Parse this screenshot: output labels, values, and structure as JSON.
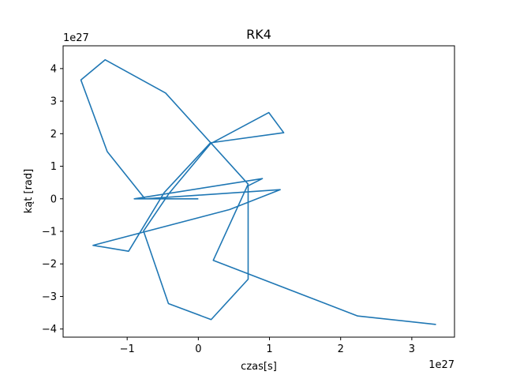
{
  "chart_data": {
    "type": "line",
    "title": "RK4",
    "xlabel": "czas[s]",
    "ylabel": "kąt [rad]",
    "x_offset_label": "1e27",
    "y_offset_label": "1e27",
    "xlim": [
      -1.9,
      3.6
    ],
    "ylim": [
      -4.25,
      4.7
    ],
    "xticks": [
      -1,
      0,
      1,
      2,
      3
    ],
    "yticks": [
      -4,
      -3,
      -2,
      -1,
      0,
      1,
      2,
      3,
      4
    ],
    "xtick_labels": [
      "−1",
      "0",
      "1",
      "2",
      "3"
    ],
    "ytick_labels": [
      "−4",
      "−3",
      "−2",
      "−1",
      "0",
      "1",
      "2",
      "3",
      "4"
    ],
    "grid": false,
    "series_color": "#1f77b4",
    "series": [
      {
        "x": [
          0.0,
          -0.9,
          0.9,
          0.7,
          0.7,
          0.18,
          -0.42,
          -0.77,
          -0.41,
          0.17,
          0.99,
          1.2,
          0.17,
          -0.48,
          -0.98,
          -1.48,
          0.44,
          1.15,
          -0.75,
          -1.28,
          -1.65,
          -1.31,
          -0.46,
          0.7,
          0.21,
          2.24,
          3.34
        ],
        "y": [
          0.0,
          0.0,
          0.62,
          0.4,
          -2.47,
          -3.71,
          -3.22,
          -0.99,
          0.17,
          1.69,
          2.65,
          2.03,
          1.72,
          0.19,
          -1.61,
          -1.43,
          -0.33,
          0.28,
          0.0,
          1.45,
          3.65,
          4.27,
          3.25,
          0.45,
          -1.89,
          -3.6,
          -3.86
        ]
      }
    ]
  }
}
